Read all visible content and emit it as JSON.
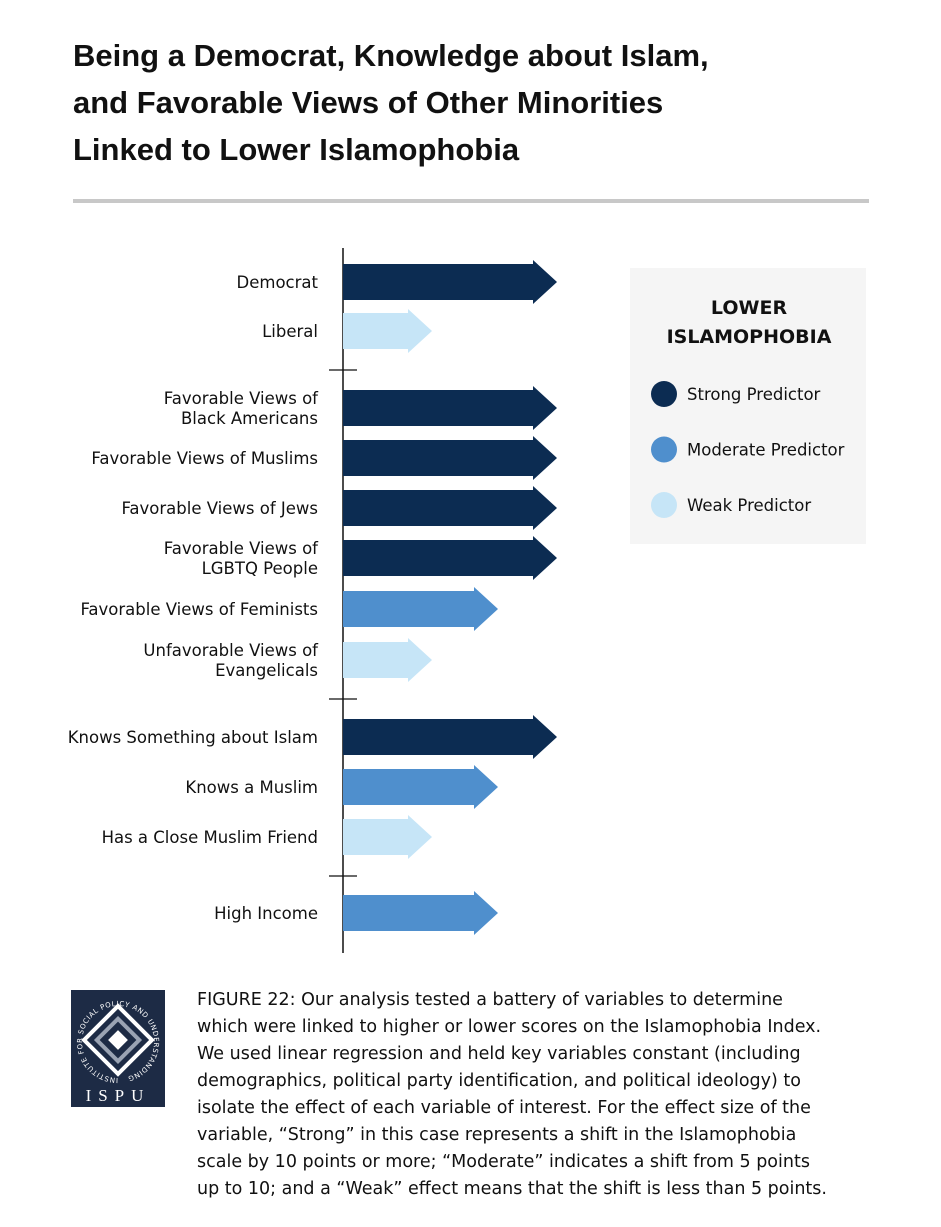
{
  "title": [
    "Being a Democrat, Knowledge about Islam,",
    "and Favorable Views of Other Minorities",
    "Linked to Lower Islamophobia"
  ],
  "groups": [
    [
      {
        "label": [
          "Democrat"
        ],
        "predictor": "Strong Predictor"
      },
      {
        "label": [
          "Liberal"
        ],
        "predictor": "Weak Predictor"
      }
    ],
    [
      {
        "label": [
          "Favorable Views of",
          "Black Americans"
        ],
        "predictor": "Strong Predictor"
      },
      {
        "label": [
          "Favorable Views of Muslims"
        ],
        "predictor": "Strong Predictor"
      },
      {
        "label": [
          "Favorable Views of Jews"
        ],
        "predictor": "Strong Predictor"
      },
      {
        "label": [
          "Favorable Views of",
          "LGBTQ People"
        ],
        "predictor": "Strong Predictor"
      },
      {
        "label": [
          "Favorable Views of Feminists"
        ],
        "predictor": "Moderate Predictor"
      },
      {
        "label": [
          "Unfavorable Views of",
          "Evangelicals"
        ],
        "predictor": "Weak Predictor"
      }
    ],
    [
      {
        "label": [
          "Knows Something about Islam"
        ],
        "predictor": "Strong Predictor"
      },
      {
        "label": [
          "Knows a Muslim"
        ],
        "predictor": "Moderate Predictor"
      },
      {
        "label": [
          "Has a Close Muslim Friend"
        ],
        "predictor": "Weak Predictor"
      }
    ],
    [
      {
        "label": [
          "High Income"
        ],
        "predictor": "Moderate Predictor"
      }
    ]
  ],
  "legend": {
    "title": [
      "LOWER",
      "ISLAMOPHOBIA"
    ],
    "items": [
      {
        "label": "Strong Predictor",
        "color": "#0c2c52"
      },
      {
        "label": "Moderate Predictor",
        "color": "#4f8fcd"
      },
      {
        "label": "Weak Predictor",
        "color": "#c6e5f7"
      }
    ]
  },
  "caption": {
    "lead": "FIGURE 22",
    "lines": [
      ": Our analysis tested a battery of variables to determine",
      "which were linked to higher or lower scores on the Islamophobia Index.",
      "We used linear regression and held key variables constant (including",
      "demographics, political party identification, and political ideology) to",
      "isolate the effect of each variable of interest. For the effect size of the",
      "variable, “Strong” in this case represents a shift in the Islamophobia",
      "scale by 10 points or more; “Moderate” indicates a shift from 5 points",
      "up to 10; and a “Weak” effect means that the shift is less than 5 points."
    ]
  },
  "logo": {
    "name": "ISPU",
    "ring": "INSTITUTE FOR SOCIAL POLICY AND UNDERSTANDING"
  }
}
